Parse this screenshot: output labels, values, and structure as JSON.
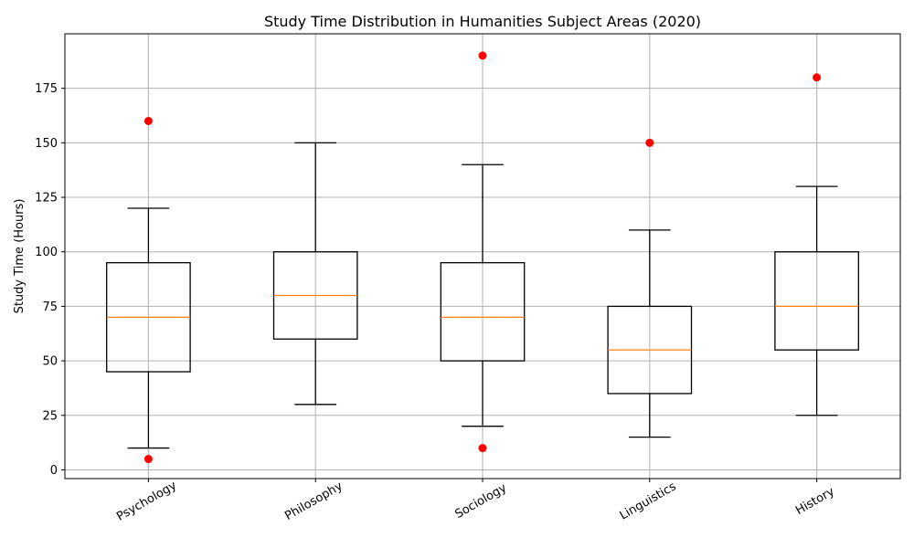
{
  "chart_data": {
    "type": "box",
    "title": "Study Time Distribution in Humanities Subject Areas (2020)",
    "xlabel": "",
    "ylabel": "Study Time (Hours)",
    "ylim": [
      -4,
      200
    ],
    "yticks": [
      0,
      25,
      50,
      75,
      100,
      125,
      150,
      175
    ],
    "grid": true,
    "categories": [
      "Psychology",
      "Philosophy",
      "Sociology",
      "Linguistics",
      "History"
    ],
    "boxes": [
      {
        "category": "Psychology",
        "whisker_low": 10,
        "q1": 45,
        "median": 70,
        "q3": 95,
        "whisker_high": 120,
        "outliers": [
          5,
          160
        ]
      },
      {
        "category": "Philosophy",
        "whisker_low": 30,
        "q1": 60,
        "median": 80,
        "q3": 100,
        "whisker_high": 150,
        "outliers": []
      },
      {
        "category": "Sociology",
        "whisker_low": 20,
        "q1": 50,
        "median": 70,
        "q3": 95,
        "whisker_high": 140,
        "outliers": [
          10,
          190
        ]
      },
      {
        "category": "Linguistics",
        "whisker_low": 15,
        "q1": 35,
        "median": 55,
        "q3": 75,
        "whisker_high": 110,
        "outliers": [
          150
        ]
      },
      {
        "category": "History",
        "whisker_low": 25,
        "q1": 55,
        "median": 75,
        "q3": 100,
        "whisker_high": 130,
        "outliers": [
          180
        ]
      }
    ],
    "colors": {
      "box": "#000000",
      "median": "#ff7f0e",
      "outlier": "#ff0000",
      "grid": "#b0b0b0"
    }
  }
}
